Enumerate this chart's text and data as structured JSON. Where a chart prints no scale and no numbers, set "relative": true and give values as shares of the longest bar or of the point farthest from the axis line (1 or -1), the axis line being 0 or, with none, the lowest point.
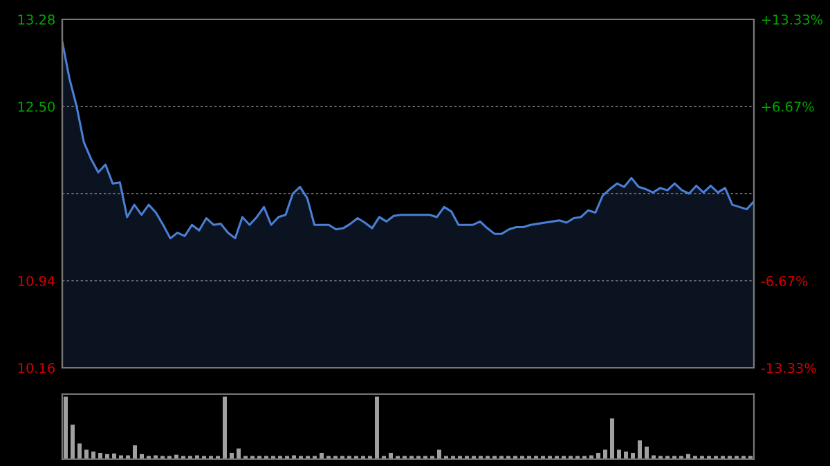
{
  "chart_data": [
    {
      "type": "area",
      "grid": "y",
      "tick_labels": "y",
      "categories": [
        null,
        null,
        null,
        null,
        null,
        null,
        null,
        null,
        null,
        null,
        null,
        null,
        null,
        null,
        null,
        null,
        null,
        null,
        null,
        null,
        null,
        null,
        null,
        null,
        null,
        null,
        null,
        null,
        null,
        null,
        null,
        null,
        null,
        null,
        null,
        null,
        null,
        null,
        null,
        null,
        null,
        null,
        null,
        null,
        null,
        null,
        null,
        null,
        null,
        null,
        null,
        null,
        null,
        null,
        null,
        null,
        null,
        null,
        null,
        null,
        null,
        null,
        null,
        null,
        null,
        null,
        null,
        null,
        null,
        null,
        null,
        null,
        null,
        null,
        null,
        null,
        null,
        null,
        null,
        null,
        null,
        null,
        null,
        null,
        null,
        null,
        null,
        null,
        null,
        null,
        null,
        null,
        null,
        null,
        null,
        null,
        null
      ],
      "ylim": [
        10.16,
        13.28
      ],
      "yticks": [
        {
          "value": 10.16,
          "label": "10.16"
        },
        {
          "value": 10.94,
          "label": "10.94"
        },
        {
          "value": 11.72,
          "label": null
        },
        {
          "value": 12.5,
          "label": "12.50"
        },
        {
          "value": 13.28,
          "label": "13.28"
        }
      ],
      "y2lim": [
        -13.33,
        13.33
      ],
      "y2ticks": [
        {
          "value": -13.33,
          "label": "-13.33%"
        },
        {
          "value": -6.67,
          "label": "-6.67%"
        },
        {
          "value": 6.67,
          "label": "+6.67%"
        },
        {
          "value": 13.33,
          "label": "+13.33%"
        }
      ],
      "series": [
        {
          "color": "#4a7fd4",
          "values": [
            13.08,
            12.75,
            12.5,
            12.18,
            12.03,
            11.91,
            11.98,
            11.81,
            11.82,
            11.51,
            11.62,
            11.53,
            11.62,
            11.55,
            11.44,
            11.32,
            11.37,
            11.34,
            11.44,
            11.39,
            11.5,
            11.44,
            11.45,
            11.37,
            11.32,
            11.51,
            11.44,
            11.51,
            11.6,
            11.44,
            11.51,
            11.53,
            11.72,
            11.78,
            11.68,
            11.44,
            11.44,
            11.44,
            11.4,
            11.41,
            11.45,
            11.5,
            11.46,
            11.41,
            11.51,
            11.47,
            11.52,
            11.53,
            11.53,
            11.53,
            11.53,
            11.53,
            11.51,
            11.6,
            11.56,
            11.44,
            11.44,
            11.44,
            11.47,
            11.41,
            11.36,
            11.36,
            11.4,
            11.42,
            11.42,
            11.44,
            11.45,
            11.46,
            11.47,
            11.48,
            11.46,
            11.5,
            11.51,
            11.57,
            11.55,
            11.7,
            11.76,
            11.81,
            11.78,
            11.86,
            11.78,
            11.76,
            11.73,
            11.77,
            11.75,
            11.81,
            11.75,
            11.72,
            11.79,
            11.73,
            11.79,
            11.73,
            11.77,
            11.62,
            11.6,
            11.58,
            11.65
          ]
        }
      ]
    },
    {
      "type": "bar",
      "relative": true,
      "color": "#a0a0a0",
      "categories": [
        null,
        null,
        null,
        null,
        null,
        null,
        null,
        null,
        null,
        null,
        null,
        null,
        null,
        null,
        null,
        null,
        null,
        null,
        null,
        null,
        null,
        null,
        null,
        null,
        null,
        null,
        null,
        null,
        null,
        null,
        null,
        null,
        null,
        null,
        null,
        null,
        null,
        null,
        null,
        null,
        null,
        null,
        null,
        null,
        null,
        null,
        null,
        null,
        null,
        null,
        null,
        null,
        null,
        null,
        null,
        null,
        null,
        null,
        null,
        null,
        null,
        null,
        null,
        null,
        null,
        null,
        null,
        null,
        null,
        null,
        null,
        null,
        null,
        null,
        null,
        null,
        null,
        null,
        null,
        null,
        null,
        null,
        null,
        null,
        null,
        null,
        null,
        null,
        null,
        null,
        null,
        null,
        null,
        null,
        null,
        null,
        null,
        null,
        null,
        null
      ],
      "values": [
        1.0,
        0.55,
        0.25,
        0.15,
        0.12,
        0.1,
        0.08,
        0.09,
        0.06,
        0.06,
        0.22,
        0.08,
        0.05,
        0.06,
        0.05,
        0.05,
        0.07,
        0.05,
        0.05,
        0.06,
        0.05,
        0.05,
        0.05,
        1.0,
        0.1,
        0.17,
        0.05,
        0.05,
        0.05,
        0.05,
        0.05,
        0.05,
        0.05,
        0.06,
        0.05,
        0.05,
        0.05,
        0.1,
        0.05,
        0.05,
        0.05,
        0.05,
        0.05,
        0.05,
        0.05,
        1.0,
        0.05,
        0.1,
        0.05,
        0.05,
        0.05,
        0.05,
        0.05,
        0.05,
        0.15,
        0.05,
        0.05,
        0.05,
        0.05,
        0.05,
        0.05,
        0.05,
        0.05,
        0.05,
        0.05,
        0.05,
        0.05,
        0.05,
        0.05,
        0.05,
        0.05,
        0.05,
        0.05,
        0.05,
        0.05,
        0.05,
        0.06,
        0.1,
        0.15,
        0.65,
        0.15,
        0.12,
        0.1,
        0.3,
        0.2,
        0.06,
        0.05,
        0.05,
        0.05,
        0.05,
        0.08,
        0.05,
        0.05,
        0.05,
        0.05,
        0.05,
        0.05,
        0.05,
        0.05,
        0.05
      ]
    }
  ]
}
